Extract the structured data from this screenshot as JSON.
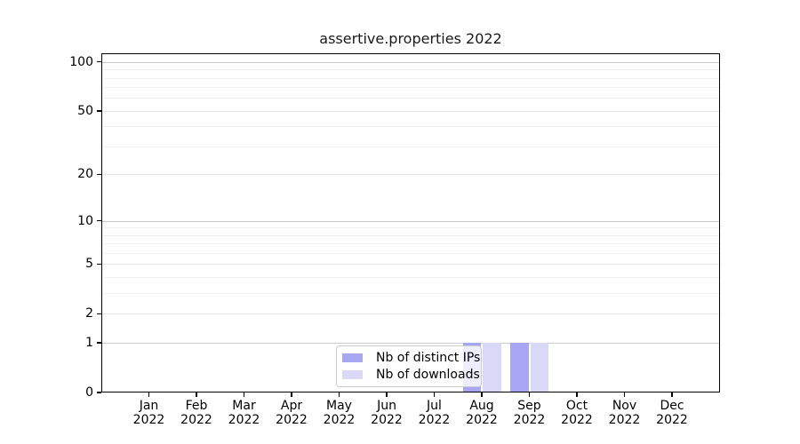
{
  "title": "assertive.properties 2022",
  "chart_data": {
    "type": "bar",
    "title": "assertive.properties 2022",
    "categories": [
      "Jan",
      "Feb",
      "Mar",
      "Apr",
      "May",
      "Jun",
      "Jul",
      "Aug",
      "Sep",
      "Oct",
      "Nov",
      "Dec"
    ],
    "year": "2022",
    "series": [
      {
        "name": "Nb of distinct IPs",
        "color": "#a6a6f2",
        "values": [
          0,
          0,
          0,
          0,
          0,
          0,
          0,
          1,
          1,
          0,
          0,
          0
        ]
      },
      {
        "name": "Nb of downloads",
        "color": "#d9d9f7",
        "values": [
          0,
          0,
          0,
          0,
          0,
          0,
          0,
          1,
          1,
          0,
          0,
          0
        ]
      }
    ],
    "xlabel": "",
    "ylabel": "",
    "yscale": "log1p",
    "ylim": [
      0,
      113
    ],
    "ytick_values": [
      0,
      1,
      2,
      5,
      10,
      20,
      50,
      100
    ],
    "ytick_major_values": [
      1,
      10,
      100
    ],
    "ytick_minor_values": [
      3,
      4,
      6,
      7,
      8,
      9,
      30,
      40,
      60,
      70,
      80,
      90
    ],
    "grid": "horizontal",
    "legend_position": "lower center"
  }
}
